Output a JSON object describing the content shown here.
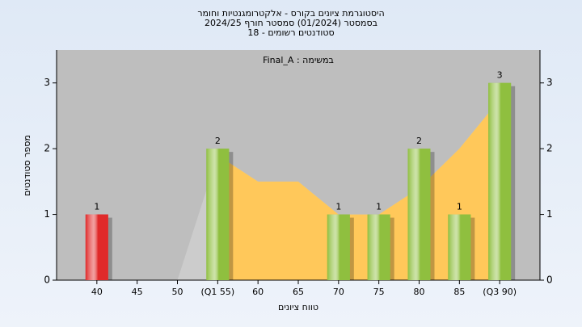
{
  "chart_data": {
    "type": "bar",
    "title_lines": [
      "היסטוגרמת ציונים בקורס - אלקטרומגנטיות וחומר",
      "בסמסטר  (01/2024)  סמסטר חורף 2024/25",
      "סטודנטים רשומים - 18"
    ],
    "annotation": "Final_A : במשימה",
    "x_label": "טווח ציונים",
    "y_label": "מספר סטודנטים",
    "categories": [
      "40",
      "45",
      "50",
      "(Q1 55)",
      "60",
      "65",
      "70",
      "75",
      "80",
      "85",
      "(Q3 90)"
    ],
    "values": [
      1,
      0,
      0,
      2,
      0,
      0,
      1,
      1,
      2,
      1,
      3
    ],
    "colors": [
      "#e02a2a",
      "#8fbf3f",
      "#8fbf3f",
      "#8fbf3f",
      "#8fbf3f",
      "#8fbf3f",
      "#8fbf3f",
      "#8fbf3f",
      "#8fbf3f",
      "#8fbf3f",
      "#8fbf3f"
    ],
    "area_values": [
      0,
      0,
      0,
      1.9,
      1.5,
      1.5,
      1.0,
      1.0,
      1.4,
      2.0,
      2.75
    ],
    "area_color": "#ffc85a",
    "ylim": [
      0,
      3.5
    ],
    "yticks": [
      0,
      1,
      2,
      3
    ],
    "y2lim": [
      0,
      3.5
    ],
    "y2ticks": [
      0,
      1,
      2,
      3
    ]
  }
}
